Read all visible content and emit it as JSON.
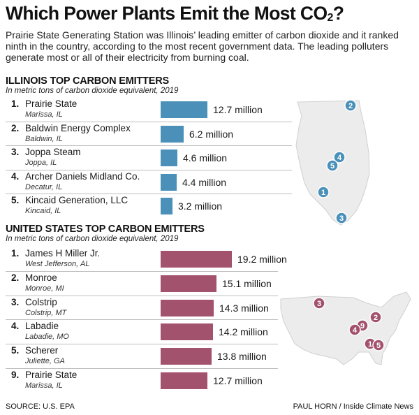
{
  "title": "Which Power Plants Emit the Most CO",
  "title_subscript": "2",
  "title_end": "?",
  "intro": "Prairie State Generating Station was Illinois’ leading emitter of carbon dioxide and it ranked ninth in the country, according to the most recent government data. The leading polluters generate most or all of their electricity from burning coal.",
  "chart_data": [
    {
      "type": "bar",
      "title": "ILLINOIS TOP CARBON EMITTERS",
      "subtitle": "In metric tons of carbon dioxide equivalent, 2019",
      "color": "#4a90b8",
      "xlim": [
        0,
        19.2
      ],
      "rows": [
        {
          "rank": "1.",
          "name": "Prairie State",
          "location": "Marissa, IL",
          "value": 12.7,
          "label": "12.7 million"
        },
        {
          "rank": "2.",
          "name": "Baldwin Energy Complex",
          "location": "Baldwin, IL",
          "value": 6.2,
          "label": "6.2 million"
        },
        {
          "rank": "3.",
          "name": "Joppa Steam",
          "location": "Joppa, IL",
          "value": 4.6,
          "label": "4.6 million"
        },
        {
          "rank": "4.",
          "name": "Archer Daniels Midland Co.",
          "location": "Decatur, IL",
          "value": 4.4,
          "label": "4.4 million"
        },
        {
          "rank": "5.",
          "name": "Kincaid Generation, LLC",
          "location": "Kincaid, IL",
          "value": 3.2,
          "label": "3.2 million"
        }
      ]
    },
    {
      "type": "bar",
      "title": "UNITED STATES TOP CARBON EMITTERS",
      "subtitle": "In metric tons of carbon dioxide equivalent, 2019",
      "color": "#a3526e",
      "xlim": [
        0,
        19.2
      ],
      "rows": [
        {
          "rank": "1.",
          "name": "James H Miller Jr.",
          "location": "West Jefferson, AL",
          "value": 19.2,
          "label": "19.2 million"
        },
        {
          "rank": "2.",
          "name": "Monroe",
          "location": "Monroe, MI",
          "value": 15.1,
          "label": "15.1 million"
        },
        {
          "rank": "3.",
          "name": "Colstrip",
          "location": "Colstrip, MT",
          "value": 14.3,
          "label": "14.3 million"
        },
        {
          "rank": "4.",
          "name": "Labadie",
          "location": "Labadie, MO",
          "value": 14.2,
          "label": "14.2 million"
        },
        {
          "rank": "5.",
          "name": "Scherer",
          "location": "Juliette, GA",
          "value": 13.8,
          "label": "13.8 million"
        },
        {
          "rank": "9.",
          "name": "Prairie State",
          "location": "Marissa, IL",
          "value": 12.7,
          "label": "12.7 million"
        }
      ]
    }
  ],
  "maps": {
    "illinois_markers": [
      "2",
      "4",
      "5",
      "1",
      "3"
    ],
    "us_markers": [
      "3",
      "2",
      "9",
      "4",
      "1",
      "5"
    ]
  },
  "footer": {
    "source": "SOURCE: U.S. EPA",
    "credit": "PAUL HORN / Inside Climate News"
  }
}
